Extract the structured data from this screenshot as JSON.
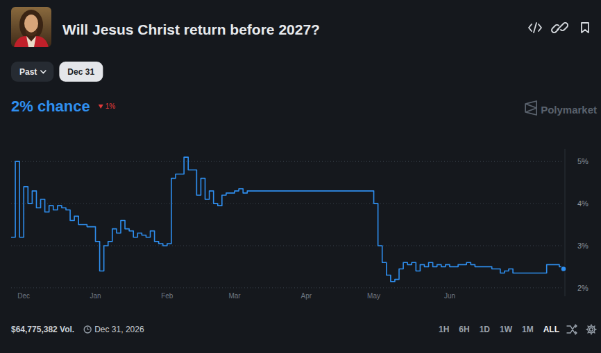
{
  "chart_data": {
    "type": "line",
    "title": "Will Jesus Christ return before 2027?",
    "categories": [
      null,
      null,
      null,
      "Dec",
      null,
      null,
      null,
      null,
      null,
      null,
      null,
      null,
      null,
      null,
      null,
      null,
      null,
      null,
      null,
      null,
      "Jan",
      null,
      null,
      null,
      null,
      null,
      null,
      null,
      null,
      null,
      null,
      null,
      null,
      null,
      null,
      null,
      null,
      "Feb",
      null,
      null,
      null,
      null,
      null,
      null,
      null,
      null,
      null,
      null,
      null,
      null,
      null,
      null,
      null,
      "Mar",
      null,
      null,
      null,
      null,
      null,
      null,
      null,
      null,
      null,
      null,
      null,
      null,
      null,
      null,
      null,
      null,
      "Apr",
      null,
      null,
      null,
      null,
      null,
      null,
      null,
      null,
      null,
      null,
      null,
      null,
      null,
      null,
      null,
      "May",
      null,
      null,
      null,
      null,
      null,
      null,
      null,
      null,
      null,
      null,
      null,
      null,
      null,
      null,
      null,
      null,
      null,
      "Jun",
      null,
      null,
      null,
      null,
      null,
      null,
      null,
      null,
      null,
      null,
      null,
      null,
      null,
      null,
      null,
      null,
      null,
      null,
      null,
      null,
      null,
      null,
      null,
      null,
      null,
      null,
      null
    ],
    "values": [
      3.2,
      5.0,
      3.2,
      4.4,
      4.0,
      4.3,
      3.9,
      4.1,
      3.8,
      3.95,
      3.85,
      3.95,
      3.9,
      3.85,
      3.6,
      3.7,
      3.5,
      3.5,
      3.45,
      3.45,
      3.1,
      2.4,
      3.0,
      3.1,
      3.4,
      3.3,
      3.6,
      3.4,
      3.35,
      3.2,
      3.3,
      3.25,
      3.2,
      3.35,
      3.1,
      3.05,
      3.0,
      3.05,
      4.6,
      4.7,
      4.7,
      5.1,
      4.8,
      4.8,
      4.2,
      4.6,
      4.1,
      4.3,
      4.0,
      3.95,
      4.2,
      4.25,
      4.25,
      4.3,
      4.35,
      4.25,
      4.3,
      4.3,
      4.3,
      4.3,
      4.3,
      4.3,
      4.3,
      4.3,
      4.3,
      4.3,
      4.3,
      4.3,
      4.3,
      4.3,
      4.3,
      4.3,
      4.3,
      4.3,
      4.3,
      4.3,
      4.3,
      4.3,
      4.3,
      4.3,
      4.3,
      4.3,
      4.3,
      4.3,
      4.3,
      4.3,
      4.0,
      3.0,
      2.6,
      2.3,
      2.15,
      2.2,
      2.45,
      2.6,
      2.55,
      2.6,
      2.4,
      2.55,
      2.5,
      2.6,
      2.5,
      2.55,
      2.5,
      2.55,
      2.5,
      2.5,
      2.55,
      2.55,
      2.6,
      2.55,
      2.5,
      2.5,
      2.5,
      2.5,
      2.45,
      2.45,
      2.35,
      2.4,
      2.45,
      2.35,
      2.35,
      2.35,
      2.35,
      2.35,
      2.35,
      2.35,
      2.35,
      2.55,
      2.55,
      2.55,
      2.5,
      2.45
    ],
    "color": "#2f8ff0",
    "line_style": "step",
    "ylim": [
      1.8,
      5.3
    ],
    "yticks": [
      {
        "value": 2,
        "label": "2%"
      },
      {
        "value": 3,
        "label": "3%"
      },
      {
        "value": 4,
        "label": "4%"
      },
      {
        "value": 5,
        "label": "5%"
      }
    ],
    "grid": true
  },
  "header": {
    "buttons": [
      "Past",
      "Dec 31"
    ],
    "headline": "2% chance",
    "change": "1%",
    "watermark": "Polymarket"
  },
  "footer": {
    "volume": "$64,775,382 Vol.",
    "end_date": "Dec 31, 2026",
    "ranges": [
      "1H",
      "6H",
      "1D",
      "1W",
      "1M",
      "ALL"
    ]
  }
}
